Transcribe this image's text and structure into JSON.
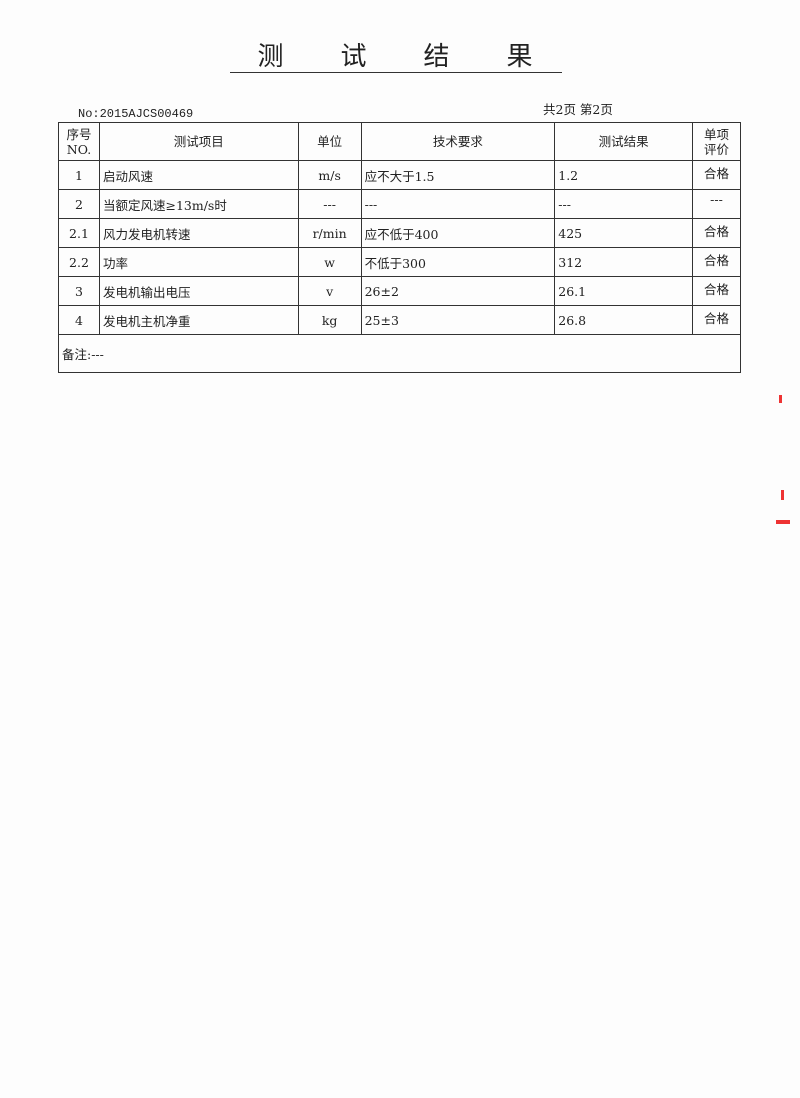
{
  "title": [
    "测",
    "试",
    "结",
    "果"
  ],
  "doc_no": "No:2015AJCS00469",
  "page_info": "共2页 第2页",
  "headers": {
    "no": "序号\nNO.",
    "item": "测试项目",
    "unit": "单位",
    "requirement": "技术要求",
    "result": "测试结果",
    "evaluation": "单项\n评价"
  },
  "rows": [
    {
      "no": "1",
      "item": "启动风速",
      "unit": "m/s",
      "requirement": "应不大于1.5",
      "result": "1.2",
      "evaluation": "合格"
    },
    {
      "no": "2",
      "item": "当额定风速≥13m/s时",
      "unit": "---",
      "requirement": "---",
      "result": "---",
      "evaluation": "---"
    },
    {
      "no": "2.1",
      "item": "风力发电机转速",
      "unit": "r/min",
      "requirement": "应不低于400",
      "result": "425",
      "evaluation": "合格"
    },
    {
      "no": "2.2",
      "item": "功率",
      "unit": "w",
      "requirement": "不低于300",
      "result": "312",
      "evaluation": "合格"
    },
    {
      "no": "3",
      "item": "发电机输出电压",
      "unit": "v",
      "requirement": "26±2",
      "result": "26.1",
      "evaluation": "合格"
    },
    {
      "no": "4",
      "item": "发电机主机净重",
      "unit": "kg",
      "requirement": "25±3",
      "result": "26.8",
      "evaluation": "合格"
    }
  ],
  "notes": "备注:---"
}
